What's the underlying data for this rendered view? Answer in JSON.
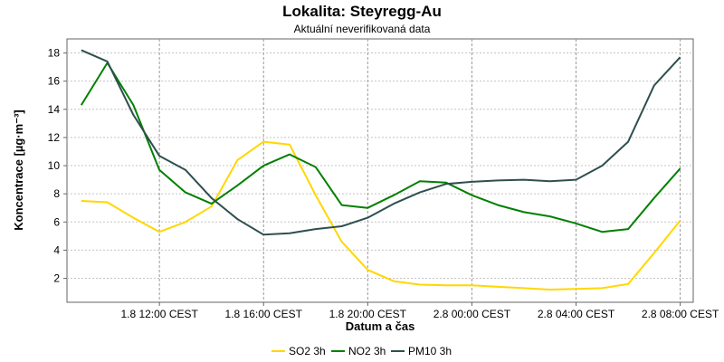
{
  "chart_data": {
    "type": "line",
    "title": "Lokalita: Steyregg-Au",
    "subtitle": "Aktuální neverifikovaná data",
    "xlabel": "Datum a čas",
    "ylabel": "Koncentrace [µg·m⁻³]",
    "x_tick_labels": [
      "1.8 12:00 CEST",
      "1.8 16:00 CEST",
      "1.8 20:00 CEST",
      "2.8 00:00 CEST",
      "2.8 04:00 CEST",
      "2.8 08:00 CEST"
    ],
    "x_tick_hours": [
      12,
      16,
      20,
      24,
      28,
      32
    ],
    "x_hours": [
      9,
      10,
      11,
      12,
      13,
      14,
      15,
      16,
      17,
      18,
      19,
      20,
      21,
      22,
      23,
      24,
      25,
      26,
      27,
      28,
      29,
      30,
      31,
      32
    ],
    "xlim": [
      8.45,
      32.5
    ],
    "ylim": [
      0.3,
      19.0
    ],
    "y_ticks": [
      2,
      4,
      6,
      8,
      10,
      12,
      14,
      16,
      18
    ],
    "grid": true,
    "legend_position": "bottom-center",
    "series": [
      {
        "name": "SO2 3h",
        "color": "#FFD700",
        "values": [
          7.5,
          7.4,
          6.3,
          5.3,
          6.0,
          7.1,
          10.4,
          11.7,
          11.5,
          7.9,
          4.6,
          2.6,
          1.8,
          1.55,
          1.5,
          1.5,
          1.4,
          1.3,
          1.2,
          1.25,
          1.3,
          1.6,
          3.8,
          6.1
        ]
      },
      {
        "name": "NO2 3h",
        "color": "#008000",
        "values": [
          14.3,
          17.3,
          14.3,
          9.7,
          8.1,
          7.3,
          8.6,
          10.0,
          10.8,
          9.9,
          7.2,
          7.0,
          7.9,
          8.9,
          8.8,
          7.9,
          7.2,
          6.7,
          6.4,
          5.9,
          5.3,
          5.5,
          7.7,
          9.8
        ]
      },
      {
        "name": "PM10 3h",
        "color": "#2F4F4F",
        "values": [
          18.2,
          17.4,
          13.6,
          10.7,
          9.7,
          7.7,
          6.2,
          5.1,
          5.2,
          5.5,
          5.7,
          6.3,
          7.3,
          8.1,
          8.7,
          8.85,
          8.95,
          9.0,
          8.9,
          9.0,
          10.0,
          11.7,
          15.7,
          17.7
        ]
      }
    ]
  }
}
